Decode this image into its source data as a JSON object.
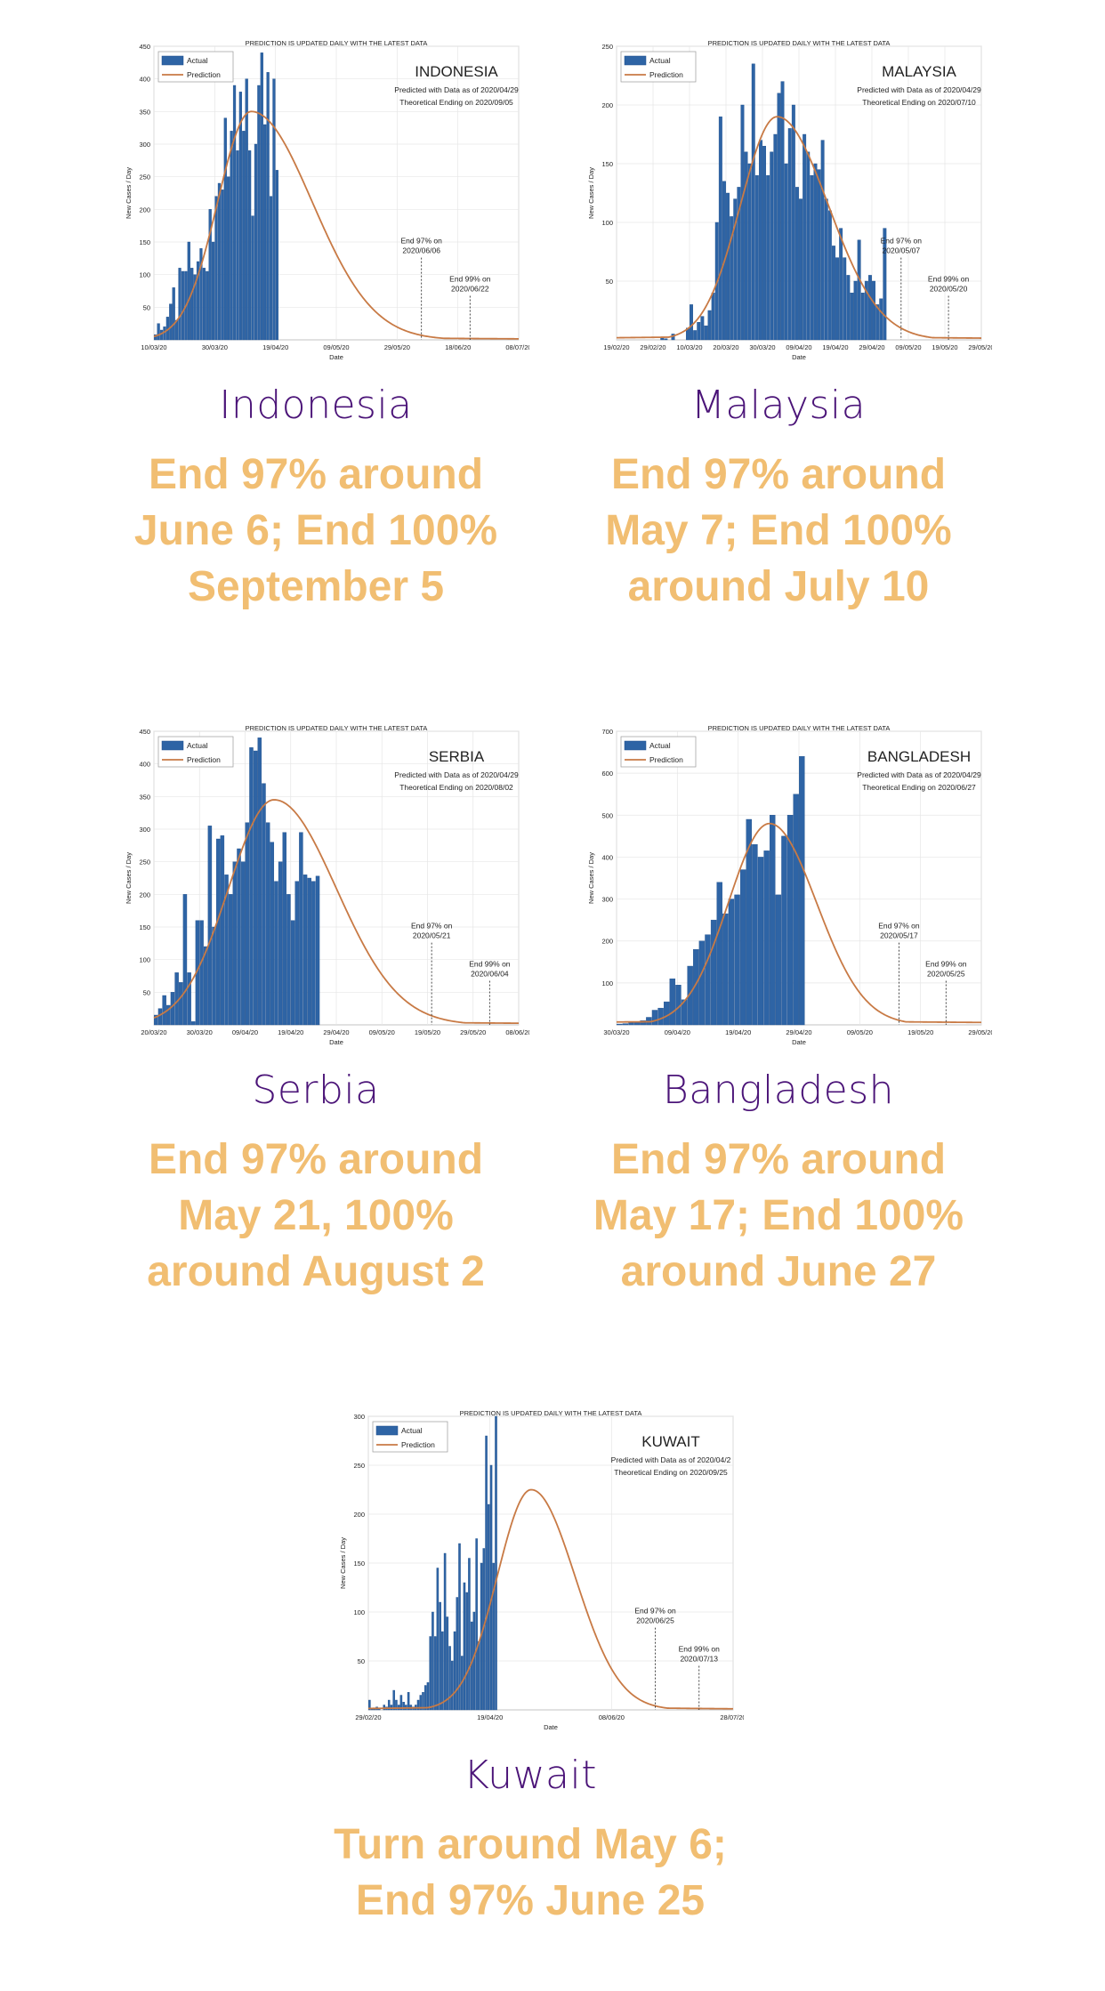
{
  "chart_data": [
    {
      "type": "bar",
      "banner": "PREDICTION IS UPDATED DAILY WITH THE LATEST DATA",
      "title": "INDONESIA",
      "subtitle_1": "Predicted with Data as of 2020/04/29",
      "subtitle_2": "Theoretical Ending on 2020/09/05",
      "xlabel": "Date",
      "ylabel": "New Cases / Day",
      "legend": [
        "Actual",
        "Prediction"
      ],
      "legend_position": "top-left",
      "grid": true,
      "ylim": [
        0,
        450
      ],
      "yticks": [
        50,
        100,
        150,
        200,
        250,
        300,
        350,
        400,
        450
      ],
      "xticks": [
        "10/03/20",
        "30/03/20",
        "19/04/20",
        "09/05/20",
        "29/05/20",
        "18/06/20",
        "08/07/20"
      ],
      "x_days": 120,
      "actual": [
        8,
        25,
        15,
        20,
        35,
        55,
        80,
        30,
        110,
        105,
        105,
        150,
        110,
        100,
        120,
        140,
        110,
        105,
        200,
        150,
        220,
        240,
        230,
        340,
        250,
        320,
        390,
        290,
        380,
        320,
        400,
        290,
        190,
        300,
        390,
        440,
        330,
        410,
        220,
        400,
        260
      ],
      "prediction_peak_day": 32,
      "prediction_peak_value": 350,
      "prediction_sigma_left": 11,
      "prediction_sigma_right": 20,
      "annotations": [
        {
          "label_1": "End 97% on",
          "label_2": "2020/06/06",
          "day": 88
        },
        {
          "label_1": "End 99% on",
          "label_2": "2020/06/22",
          "day": 104
        }
      ]
    },
    {
      "type": "bar",
      "banner": "PREDICTION IS UPDATED DAILY WITH THE LATEST DATA",
      "title": "MALAYSIA",
      "subtitle_1": "Predicted with Data as of 2020/04/29",
      "subtitle_2": "Theoretical Ending on 2020/07/10",
      "xlabel": "Date",
      "ylabel": "New Cases / Day",
      "legend": [
        "Actual",
        "Prediction"
      ],
      "legend_position": "top-left",
      "grid": true,
      "ylim": [
        0,
        250
      ],
      "yticks": [
        50,
        100,
        150,
        200,
        250
      ],
      "xticks": [
        "19/02/20",
        "29/02/20",
        "10/03/20",
        "20/03/20",
        "30/03/20",
        "09/04/20",
        "19/04/20",
        "29/04/20",
        "09/05/20",
        "19/05/20",
        "29/05/20"
      ],
      "x_days": 100,
      "actual": [
        0,
        0,
        0,
        0,
        0,
        0,
        0,
        0,
        0,
        0,
        0,
        0,
        2,
        1,
        0,
        5,
        0,
        0,
        0,
        10,
        30,
        8,
        15,
        20,
        12,
        25,
        40,
        100,
        190,
        135,
        125,
        105,
        120,
        130,
        200,
        160,
        150,
        235,
        140,
        170,
        165,
        140,
        160,
        175,
        210,
        220,
        150,
        180,
        200,
        130,
        120,
        175,
        160,
        140,
        150,
        145,
        170,
        120,
        110,
        80,
        70,
        95,
        70,
        55,
        40,
        50,
        85,
        40,
        50,
        55,
        50,
        30,
        35,
        95
      ],
      "prediction_peak_day": 44,
      "prediction_peak_value": 190,
      "prediction_sigma_left": 10,
      "prediction_sigma_right": 14,
      "annotations": [
        {
          "label_1": "End 97% on",
          "label_2": "2020/05/07",
          "day": 78
        },
        {
          "label_1": "End 99% on",
          "label_2": "2020/05/20",
          "day": 91
        }
      ]
    },
    {
      "type": "bar",
      "banner": "PREDICTION IS UPDATED DAILY WITH THE LATEST DATA",
      "title": "SERBIA",
      "subtitle_1": "Predicted with Data as of 2020/04/29",
      "subtitle_2": "Theoretical Ending on 2020/08/02",
      "xlabel": "Date",
      "ylabel": "New Cases / Day",
      "legend": [
        "Actual",
        "Prediction"
      ],
      "legend_position": "top-left",
      "grid": true,
      "ylim": [
        0,
        450
      ],
      "yticks": [
        50,
        100,
        150,
        200,
        250,
        300,
        350,
        400,
        450
      ],
      "xticks": [
        "20/03/20",
        "30/03/20",
        "09/04/20",
        "19/04/20",
        "29/04/20",
        "09/05/20",
        "19/05/20",
        "29/05/20",
        "08/06/20"
      ],
      "x_days": 88,
      "actual": [
        15,
        25,
        45,
        30,
        50,
        80,
        65,
        200,
        80,
        5,
        160,
        160,
        120,
        305,
        150,
        285,
        290,
        230,
        200,
        250,
        270,
        250,
        310,
        425,
        420,
        440,
        370,
        310,
        280,
        220,
        250,
        295,
        200,
        160,
        220,
        295,
        230,
        225,
        220,
        228
      ],
      "prediction_peak_day": 29,
      "prediction_peak_value": 345,
      "prediction_sigma_left": 11,
      "prediction_sigma_right": 15,
      "annotations": [
        {
          "label_1": "End 97% on",
          "label_2": "2020/05/21",
          "day": 67
        },
        {
          "label_1": "End 99% on",
          "label_2": "2020/06/04",
          "day": 81
        }
      ]
    },
    {
      "type": "bar",
      "banner": "PREDICTION IS UPDATED DAILY WITH THE LATEST DATA",
      "title": "BANGLADESH",
      "subtitle_1": "Predicted with Data as of 2020/04/29",
      "subtitle_2": "Theoretical Ending on 2020/06/27",
      "xlabel": "Date",
      "ylabel": "New Cases / Day",
      "legend": [
        "Actual",
        "Prediction"
      ],
      "legend_position": "top-left",
      "grid": true,
      "ylim": [
        0,
        700
      ],
      "yticks": [
        100,
        200,
        300,
        400,
        500,
        600,
        700
      ],
      "xticks": [
        "30/03/20",
        "09/04/20",
        "19/04/20",
        "29/04/20",
        "09/05/20",
        "19/05/20",
        "29/05/20"
      ],
      "x_days": 62,
      "actual": [
        2,
        3,
        5,
        8,
        10,
        18,
        35,
        40,
        55,
        110,
        95,
        60,
        140,
        180,
        200,
        215,
        250,
        340,
        265,
        300,
        310,
        370,
        490,
        430,
        400,
        415,
        500,
        310,
        450,
        500,
        550,
        640
      ],
      "prediction_peak_day": 26,
      "prediction_peak_value": 480,
      "prediction_sigma_left": 7,
      "prediction_sigma_right": 8,
      "annotations": [
        {
          "label_1": "End 97% on",
          "label_2": "2020/05/17",
          "day": 48
        },
        {
          "label_1": "End 99% on",
          "label_2": "2020/05/25",
          "day": 56
        }
      ]
    },
    {
      "type": "bar",
      "banner": "PREDICTION IS UPDATED DAILY WITH THE LATEST DATA",
      "title": "KUWAIT",
      "subtitle_1": "Predicted with Data as of 2020/04/2",
      "subtitle_2": "Theoretical Ending on 2020/09/25",
      "xlabel": "Date",
      "ylabel": "New Cases / Day",
      "legend": [
        "Actual",
        "Prediction"
      ],
      "legend_position": "top-left",
      "grid": true,
      "ylim": [
        0,
        300
      ],
      "yticks": [
        50,
        100,
        150,
        200,
        250,
        300
      ],
      "xticks": [
        "29/02/20",
        "19/04/20",
        "08/06/20",
        "28/07/20"
      ],
      "x_days": 150,
      "actual": [
        10,
        2,
        2,
        3,
        2,
        0,
        5,
        3,
        10,
        5,
        20,
        10,
        5,
        15,
        8,
        5,
        18,
        5,
        3,
        5,
        10,
        15,
        18,
        25,
        28,
        75,
        100,
        75,
        145,
        110,
        80,
        160,
        95,
        65,
        50,
        80,
        115,
        170,
        55,
        130,
        120,
        155,
        90,
        100,
        175,
        70,
        150,
        165,
        280,
        210,
        250,
        150,
        300
      ],
      "prediction_peak_day": 67,
      "prediction_peak_value": 225,
      "prediction_sigma_left": 14,
      "prediction_sigma_right": 18,
      "annotations": [
        {
          "label_1": "End 97% on",
          "label_2": "2020/06/25",
          "day": 118
        },
        {
          "label_1": "End 99% on",
          "label_2": "2020/07/13",
          "day": 136
        }
      ]
    }
  ],
  "cards": [
    {
      "country": "Indonesia",
      "summary": "End 97% around June 6; End 100% September 5"
    },
    {
      "country": "Malaysia",
      "summary": "End 97% around May 7; End 100% around July 10"
    },
    {
      "country": "Serbia",
      "summary": "End 97% around May 21, 100% around August 2"
    },
    {
      "country": "Bangladesh",
      "summary": "End 97% around May 17; End 100% around June 27"
    },
    {
      "country": "Kuwait",
      "summary": "Turn around May 6; End 97% June 25"
    }
  ],
  "colors": {
    "bar": "#2e64a5",
    "bar_edge": "#1f4f8c",
    "prediction": "#c87a45",
    "country": "#4b1478",
    "summary": "#f1be72",
    "grid": "#e6e6e6"
  }
}
